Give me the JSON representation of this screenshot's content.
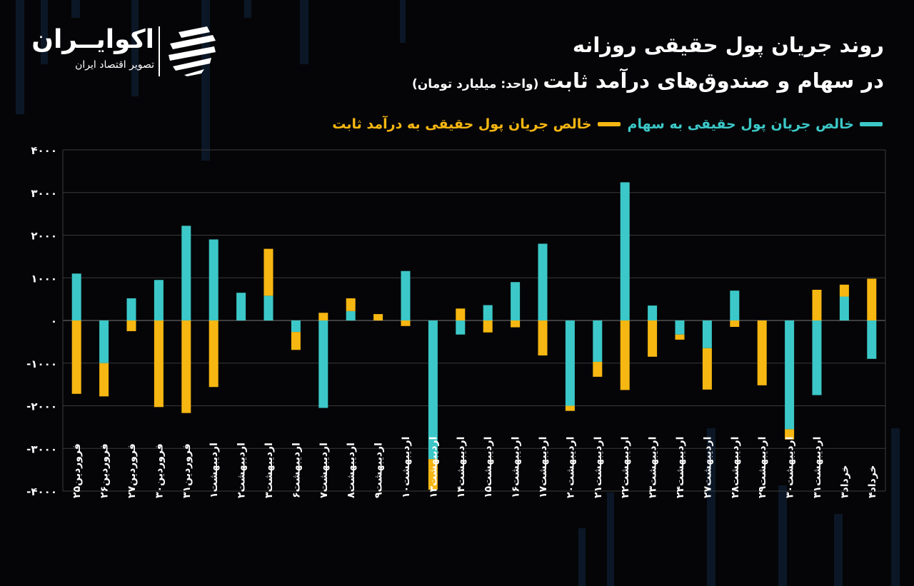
{
  "header": {
    "title_line1": "روند جریان پول حقیقی روزانه",
    "title_line2": "در سهام و صندوق‌های درآمد ثابت",
    "unit": "(واحد: میلیارد تومان)"
  },
  "brand": {
    "name": "اکوایــران",
    "tagline": "تصویر اقتصاد ایران",
    "logo_icon": "ecoiran-logo-icon"
  },
  "colors": {
    "stocks": "#3cc8c8",
    "fixed_income": "#f7b712",
    "background": "#050507",
    "grid": "#3a3a3a"
  },
  "chart_data": {
    "type": "bar",
    "stacked": true,
    "title": "روند جریان پول حقیقی روزانه در سهام و صندوق‌های درآمد ثابت",
    "unit": "(واحد: میلیارد تومان)",
    "legend_position": "top-right",
    "grid": true,
    "ylim": [
      -4000,
      4000
    ],
    "yticks": [
      4000,
      3000,
      2000,
      1000,
      0,
      -1000,
      -2000,
      -3000,
      -4000
    ],
    "ytick_labels": [
      "۴۰۰۰",
      "۳۰۰۰",
      "۲۰۰۰",
      "۱۰۰۰",
      "۰",
      "-۱۰۰۰",
      "-۲۰۰۰",
      "-۳۰۰۰",
      "-۴۰۰۰"
    ],
    "categories": [
      "فروردین۲۵",
      "فروردین۲۶",
      "فروردین۲۷",
      "فروردین۳۰",
      "فروردین۳۱",
      "اردیبهشت۱",
      "اردیبهشت۲",
      "اردیبهشت۳",
      "اردیبهشت۶",
      "اردیبهشت۷",
      "اردیبهشت۸",
      "اردیبهشت۹",
      "اردیبهشت۱۰",
      "اردیبهشت۱۳",
      "اردیبهشت۱۴",
      "اردیبهشت۱۵",
      "اردیبهشت۱۶",
      "اردیبهشت۱۷",
      "اردیبهشت۲۰",
      "اردیبهشت۲۱",
      "اردیبهشت۲۲",
      "اردیبهشت۲۳",
      "اردیبهشت۲۴",
      "اردیبهشت۲۷",
      "اردیبهشت۲۸",
      "اردیبهشت۲۹",
      "اردیبهشت۳۰",
      "اردیبهشت۳۱",
      "خرداد۳",
      "خرداد۴"
    ],
    "series": [
      {
        "name": "خالص جریان پول حقیقی به سهام",
        "values": [
          1100,
          -1000,
          520,
          950,
          2220,
          1900,
          650,
          580,
          -270,
          -2050,
          220,
          0,
          1160,
          -3250,
          -330,
          360,
          900,
          1800,
          -2000,
          -970,
          3240,
          350,
          -330,
          -650,
          700,
          0,
          -2550,
          -1750,
          560,
          -900
        ]
      },
      {
        "name": "خالص جریان پول حقیقی به درآمد ثابت",
        "values": [
          -1720,
          -780,
          -250,
          -2030,
          -2170,
          -1560,
          0,
          1100,
          -420,
          180,
          300,
          150,
          -130,
          -720,
          280,
          -280,
          -160,
          -820,
          -120,
          -350,
          -1630,
          -850,
          -120,
          -970,
          -150,
          -1520,
          -240,
          720,
          280,
          980
        ]
      }
    ]
  },
  "legend": {
    "stocks_label": "خالص جریان پول حقیقی به سهام",
    "fixed_label": "خالص جریان پول حقیقی به درآمد ثابت"
  }
}
